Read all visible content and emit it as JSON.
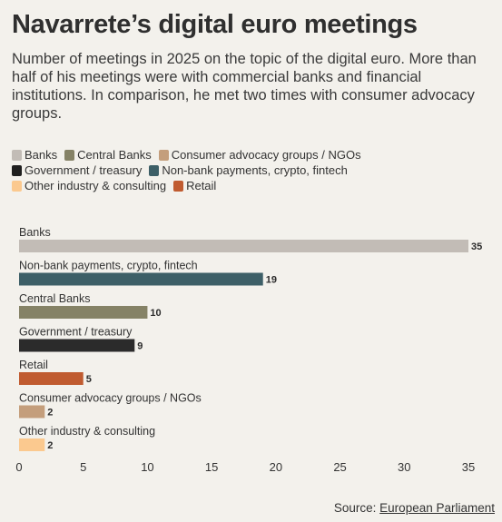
{
  "title": "Navarrete’s digital euro meetings",
  "subtitle": "Number of meetings in 2025 on the topic of the digital euro. More than half of his meetings were with commercial banks and financial institutions. In comparison, he met two times with consumer advocacy groups.",
  "legend": [
    {
      "label": "Banks",
      "color": "#c2bcb6"
    },
    {
      "label": "Central Banks",
      "color": "#858266"
    },
    {
      "label": "Consumer advocacy groups / NGOs",
      "color": "#c49e7c"
    },
    {
      "label": "Government / treasury",
      "color": "#1f1f1f"
    },
    {
      "label": "Non-bank payments, crypto, fintech",
      "color": "#3d5f67"
    },
    {
      "label": "Other industry & consulting",
      "color": "#fbc98f"
    },
    {
      "label": "Retail",
      "color": "#c05b30"
    }
  ],
  "source": {
    "prefix": "Source: ",
    "link_text": "European Parliament"
  },
  "chart_data": {
    "type": "bar",
    "orientation": "horizontal",
    "categories": [
      "Banks",
      "Non-bank payments, crypto, fintech",
      "Central Banks",
      "Government / treasury",
      "Retail",
      "Consumer advocacy groups / NGOs",
      "Other industry & consulting"
    ],
    "values": [
      35,
      19,
      10,
      9,
      5,
      2,
      2
    ],
    "colors": [
      "#c2bcb6",
      "#3d5f67",
      "#858266",
      "#2b2b2b",
      "#c05b30",
      "#c49e7c",
      "#fbc98f"
    ],
    "xlim": [
      0,
      35
    ],
    "xticks": [
      0,
      5,
      10,
      15,
      20,
      25,
      30,
      35
    ],
    "grid": false
  }
}
